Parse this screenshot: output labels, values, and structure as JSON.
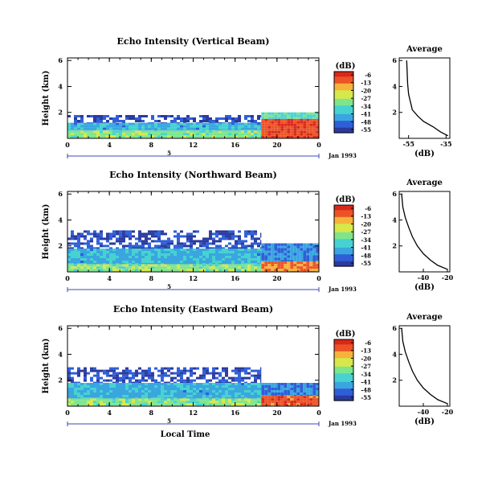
{
  "chart_data": [
    {
      "type": "heatmap",
      "title": "Echo Intensity (Vertical Beam)",
      "ylabel": "Height (km)",
      "xlabel": "",
      "x_ticks": [
        "0",
        "4",
        "8",
        "12",
        "16",
        "20",
        "0"
      ],
      "y_ticks": [
        "2",
        "4",
        "6"
      ],
      "xlim": [
        0,
        24
      ],
      "ylim": [
        0,
        6.2
      ],
      "day_label": "5",
      "date_label": "Jan 1993",
      "colorbar": {
        "unit": "(dB)",
        "ticks": [
          "-6",
          "-13",
          "-20",
          "-27",
          "-34",
          "-41",
          "-48",
          "-55"
        ]
      },
      "cells": [
        {
          "t0": 0,
          "t1": 18.5,
          "h0": 0.0,
          "h1": 0.6,
          "db": -30
        },
        {
          "t0": 0,
          "t1": 18.5,
          "h0": 0.6,
          "h1": 1.2,
          "db": -41
        },
        {
          "t0": 0,
          "t1": 18.5,
          "h0": 1.2,
          "h1": 1.8,
          "db": -52
        },
        {
          "t0": 18.5,
          "t1": 24,
          "h0": 0.0,
          "h1": 1.5,
          "db": -10
        },
        {
          "t0": 18.5,
          "t1": 24,
          "h0": 1.5,
          "h1": 2.0,
          "db": -34
        }
      ],
      "average_profile": {
        "title": "Average",
        "xlabel": "(dB)",
        "x_ticks": [
          "-55",
          "-35"
        ],
        "y_ticks": [
          "2",
          "4",
          "6"
        ],
        "xlim": [
          -60,
          -33
        ],
        "ylim": [
          0,
          6.2
        ],
        "x": [
          -34,
          -38,
          -42,
          -47,
          -50,
          -53,
          -54,
          -55,
          -55.5,
          -56
        ],
        "y": [
          0.2,
          0.5,
          0.9,
          1.3,
          1.7,
          2.2,
          2.8,
          3.4,
          4.2,
          6.0
        ]
      }
    },
    {
      "type": "heatmap",
      "title": "Echo Intensity (Northward Beam)",
      "ylabel": "Height (km)",
      "xlabel": "",
      "x_ticks": [
        "0",
        "4",
        "8",
        "12",
        "16",
        "20",
        "0"
      ],
      "y_ticks": [
        "2",
        "4",
        "6"
      ],
      "xlim": [
        0,
        24
      ],
      "ylim": [
        0,
        6.2
      ],
      "day_label": "5",
      "date_label": "Jan 1993",
      "colorbar": {
        "unit": "(dB)",
        "ticks": [
          "-6",
          "-13",
          "-20",
          "-27",
          "-34",
          "-41",
          "-48",
          "-55"
        ]
      },
      "cells": [
        {
          "t0": 0,
          "t1": 18.5,
          "h0": 0.0,
          "h1": 0.6,
          "db": -30
        },
        {
          "t0": 0,
          "t1": 18.5,
          "h0": 0.6,
          "h1": 1.8,
          "db": -41
        },
        {
          "t0": 0,
          "t1": 18.5,
          "h0": 1.8,
          "h1": 3.2,
          "db": -52
        },
        {
          "t0": 18.5,
          "t1": 24,
          "h0": 0.0,
          "h1": 0.8,
          "db": -15
        },
        {
          "t0": 18.5,
          "t1": 24,
          "h0": 0.8,
          "h1": 2.2,
          "db": -45
        }
      ],
      "average_profile": {
        "title": "Average",
        "xlabel": "(dB)",
        "x_ticks": [
          "-40",
          "-20"
        ],
        "y_ticks": [
          "2",
          "4",
          "6"
        ],
        "xlim": [
          -60,
          -18
        ],
        "ylim": [
          0,
          6.2
        ],
        "x": [
          -20,
          -28,
          -34,
          -40,
          -45,
          -49,
          -52,
          -55,
          -57,
          -58
        ],
        "y": [
          0.2,
          0.5,
          0.9,
          1.4,
          2.0,
          2.7,
          3.4,
          4.2,
          5.0,
          6.0
        ]
      }
    },
    {
      "type": "heatmap",
      "title": "Echo Intensity (Eastward Beam)",
      "ylabel": "Height (km)",
      "xlabel": "Local Time",
      "x_ticks": [
        "0",
        "4",
        "8",
        "12",
        "16",
        "20",
        "0"
      ],
      "y_ticks": [
        "2",
        "4",
        "6"
      ],
      "xlim": [
        0,
        24
      ],
      "ylim": [
        0,
        6.2
      ],
      "day_label": "5",
      "date_label": "Jan 1993",
      "colorbar": {
        "unit": "(dB)",
        "ticks": [
          "-6",
          "-13",
          "-20",
          "-27",
          "-34",
          "-41",
          "-48",
          "-55"
        ]
      },
      "cells": [
        {
          "t0": 0,
          "t1": 18.5,
          "h0": 0.0,
          "h1": 0.6,
          "db": -30
        },
        {
          "t0": 0,
          "t1": 18.5,
          "h0": 0.6,
          "h1": 1.8,
          "db": -41
        },
        {
          "t0": 0,
          "t1": 18.5,
          "h0": 1.8,
          "h1": 3.0,
          "db": -52
        },
        {
          "t0": 18.5,
          "t1": 24,
          "h0": 0.0,
          "h1": 0.8,
          "db": -12
        },
        {
          "t0": 18.5,
          "t1": 24,
          "h0": 0.8,
          "h1": 1.8,
          "db": -45
        }
      ],
      "average_profile": {
        "title": "Average",
        "xlabel": "(dB)",
        "x_ticks": [
          "-40",
          "-20"
        ],
        "y_ticks": [
          "2",
          "4",
          "6"
        ],
        "xlim": [
          -60,
          -18
        ],
        "ylim": [
          0,
          6.2
        ],
        "x": [
          -20,
          -28,
          -34,
          -40,
          -45,
          -49,
          -52,
          -55,
          -57,
          -58
        ],
        "y": [
          0.2,
          0.5,
          0.9,
          1.4,
          2.0,
          2.7,
          3.4,
          4.2,
          5.0,
          6.0
        ]
      }
    }
  ],
  "colors": {
    "scale": [
      "#2b3a9e",
      "#2f5fd8",
      "#3aa6e0",
      "#47d2d0",
      "#7ee58c",
      "#d6e84a",
      "#f6b23a",
      "#ec5326",
      "#d9281a"
    ]
  }
}
